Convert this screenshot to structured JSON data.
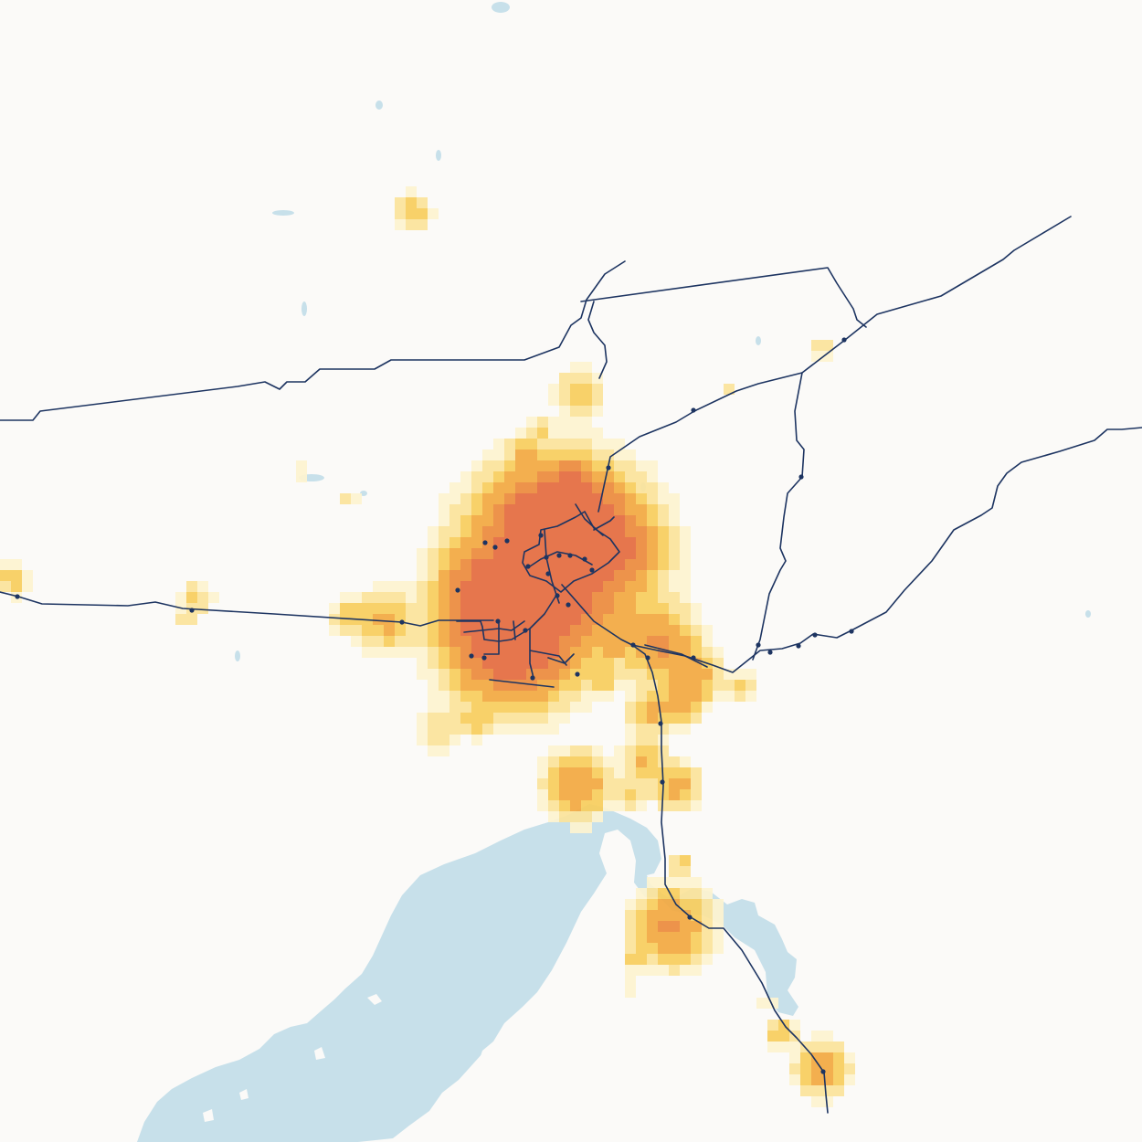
{
  "map": {
    "type": "population-density-transit",
    "basemap": "shaded-relief",
    "colors": {
      "background": "#fbfaf8",
      "water": "#c7e0ea",
      "transit_line": "#1d3461",
      "station": "#1d3461",
      "density_scale": [
        "#fdf3cf",
        "#fbe39a",
        "#f7cd5c",
        "#f2a840",
        "#ec8a3c",
        "#e46a3e"
      ]
    },
    "layers": [
      "water-bodies",
      "population-density-grid",
      "rail-lines",
      "stations"
    ]
  }
}
